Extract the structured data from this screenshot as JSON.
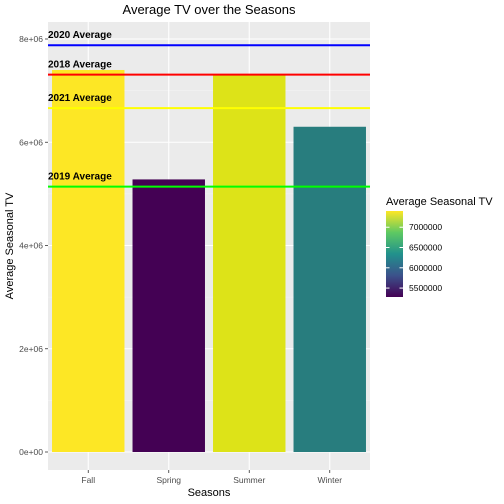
{
  "chart_data": {
    "type": "bar",
    "title": "Average TV over the Seasons",
    "xlabel": "Seasons",
    "ylabel": "Average Seasonal TV",
    "categories": [
      "Fall",
      "Spring",
      "Summer",
      "Winter"
    ],
    "values": [
      7400000,
      5280000,
      7310000,
      6300000
    ],
    "bar_colors": [
      "#fde725",
      "#440154",
      "#dde318",
      "#287d7e"
    ],
    "ylim": [
      0,
      8200000
    ],
    "y_ticks": [
      {
        "value": 0,
        "label": "0e+00"
      },
      {
        "value": 2000000,
        "label": "2e+06"
      },
      {
        "value": 4000000,
        "label": "4e+06"
      },
      {
        "value": 6000000,
        "label": "6e+06"
      },
      {
        "value": 8000000,
        "label": "8e+06"
      }
    ],
    "reference_lines": [
      {
        "label": "2020 Average",
        "value": 7880000,
        "color": "#0000ff"
      },
      {
        "label": "2018 Average",
        "value": 7310000,
        "color": "#ff0000"
      },
      {
        "label": "2021 Average",
        "value": 6660000,
        "color": "#ffff00"
      },
      {
        "label": "2019 Average",
        "value": 5140000,
        "color": "#00ff00"
      }
    ],
    "legend": {
      "title": "Average Seasonal TV",
      "position": "right",
      "range": [
        5280000,
        7400000
      ],
      "ticks": [
        {
          "value": 5500000,
          "label": "5500000"
        },
        {
          "value": 6000000,
          "label": "6000000"
        },
        {
          "value": 6500000,
          "label": "6500000"
        },
        {
          "value": 7000000,
          "label": "7000000"
        }
      ]
    },
    "grid": true
  }
}
